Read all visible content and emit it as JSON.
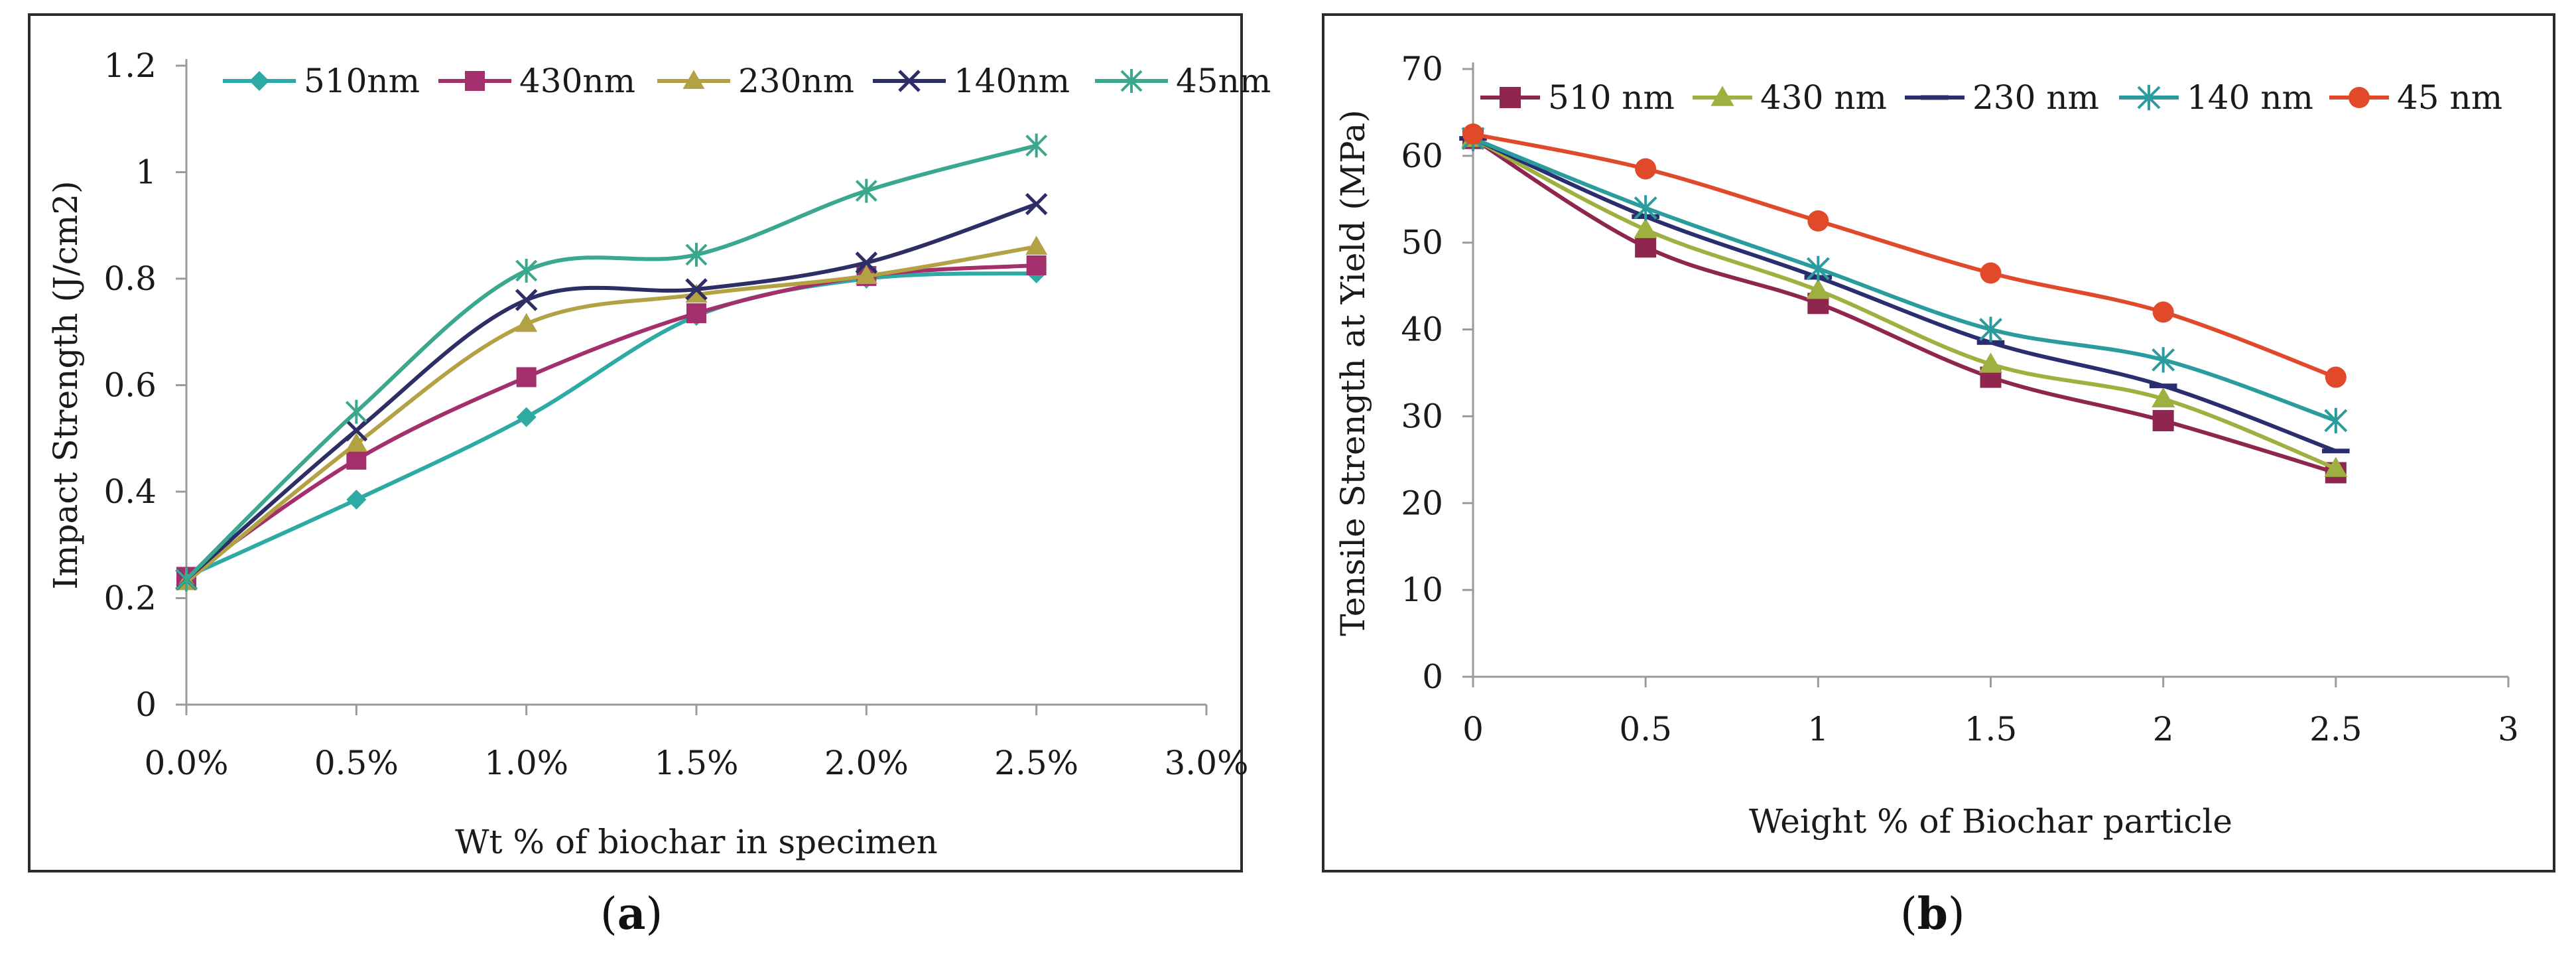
{
  "captions": {
    "a_open": "(",
    "a_letter": "a",
    "a_close": ")",
    "b_open": "(",
    "b_letter": "b",
    "b_close": ")"
  },
  "chart_data": [
    {
      "id": "a",
      "type": "line",
      "title": "",
      "xlabel": "Wt % of biochar in specimen",
      "ylabel": "Impact Strength (J/cm2)",
      "x": [
        0,
        0.5,
        1.0,
        1.5,
        2.0,
        2.5
      ],
      "xlim": [
        0,
        3
      ],
      "xticks": [
        0,
        0.5,
        1,
        1.5,
        2,
        2.5,
        3
      ],
      "xtick_labels": [
        "0.0%",
        "0.5%",
        "1.0%",
        "1.5%",
        "2.0%",
        "2.5%",
        "3.0%"
      ],
      "ylim": [
        0,
        1.2
      ],
      "yticks": [
        0,
        0.2,
        0.4,
        0.6,
        0.8,
        1,
        1.2
      ],
      "ytick_labels": [
        "0",
        "0.2",
        "0.4",
        "0.6",
        "0.8",
        "1",
        "1.2"
      ],
      "grid": false,
      "legend": "top",
      "series": [
        {
          "name": "510nm",
          "color": "#2eaaa4",
          "marker": "diamond",
          "values": [
            0.24,
            0.385,
            0.54,
            0.73,
            0.8,
            0.81
          ]
        },
        {
          "name": "430nm",
          "color": "#a3306c",
          "marker": "square",
          "values": [
            0.24,
            0.46,
            0.615,
            0.735,
            0.805,
            0.825
          ]
        },
        {
          "name": "230nm",
          "color": "#b3a244",
          "marker": "triangle",
          "values": [
            0.23,
            0.49,
            0.715,
            0.77,
            0.805,
            0.86
          ]
        },
        {
          "name": "140nm",
          "color": "#2e2e66",
          "marker": "x",
          "values": [
            0.235,
            0.515,
            0.76,
            0.78,
            0.83,
            0.94
          ]
        },
        {
          "name": "45nm",
          "color": "#3aa88e",
          "marker": "asterisk",
          "values": [
            0.235,
            0.55,
            0.815,
            0.845,
            0.965,
            1.05
          ]
        }
      ]
    },
    {
      "id": "b",
      "type": "line",
      "title": "",
      "xlabel": "Weight % of Biochar particle",
      "ylabel": "Tensile Strength at Yield (MPa)",
      "x": [
        0,
        0.5,
        1,
        1.5,
        2,
        2.5
      ],
      "xlim": [
        0,
        3
      ],
      "xticks": [
        0,
        0.5,
        1,
        1.5,
        2,
        2.5,
        3
      ],
      "xtick_labels": [
        "0",
        "0.5",
        "1",
        "1.5",
        "2",
        "2.5",
        "3"
      ],
      "ylim": [
        0,
        70
      ],
      "yticks": [
        0,
        10,
        20,
        30,
        40,
        50,
        60,
        70
      ],
      "ytick_labels": [
        "0",
        "10",
        "20",
        "30",
        "40",
        "50",
        "60",
        "70"
      ],
      "grid": false,
      "legend": "top",
      "series": [
        {
          "name": "510 nm",
          "color": "#8f2650",
          "marker": "square",
          "values": [
            62,
            49.5,
            43,
            34.5,
            29.5,
            23.5
          ]
        },
        {
          "name": "430 nm",
          "color": "#a0b040",
          "marker": "triangle",
          "values": [
            62,
            51.5,
            44.5,
            36,
            32,
            24
          ]
        },
        {
          "name": "230 nm",
          "color": "#2a2e6e",
          "marker": "dash",
          "values": [
            62,
            53,
            46,
            38.5,
            33.5,
            26
          ]
        },
        {
          "name": "140 nm",
          "color": "#2a9c9e",
          "marker": "asterisk",
          "values": [
            62,
            54,
            47,
            40,
            36.5,
            29.5
          ]
        },
        {
          "name": "45 nm",
          "color": "#e04a2a",
          "marker": "circle",
          "values": [
            62.5,
            58.5,
            52.5,
            46.5,
            42,
            34.5
          ]
        }
      ]
    }
  ]
}
